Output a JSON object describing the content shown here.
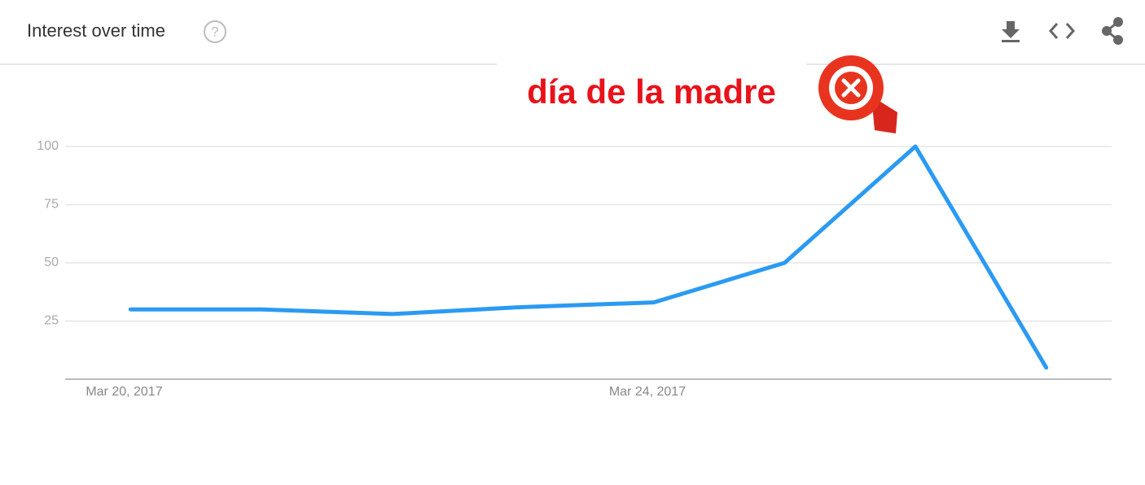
{
  "chart_data": {
    "type": "line",
    "title": "Interest over time",
    "annotation": "día de la madre",
    "categories": [
      "Mar 20, 2017",
      null,
      null,
      null,
      "Mar 24, 2017",
      null,
      null,
      null
    ],
    "values": [
      30,
      30,
      28,
      31,
      33,
      50,
      100,
      5
    ],
    "color": "#2b9af3",
    "ylim": [
      0,
      100
    ],
    "yticks": [
      25,
      50,
      75,
      100
    ],
    "grid": true
  }
}
